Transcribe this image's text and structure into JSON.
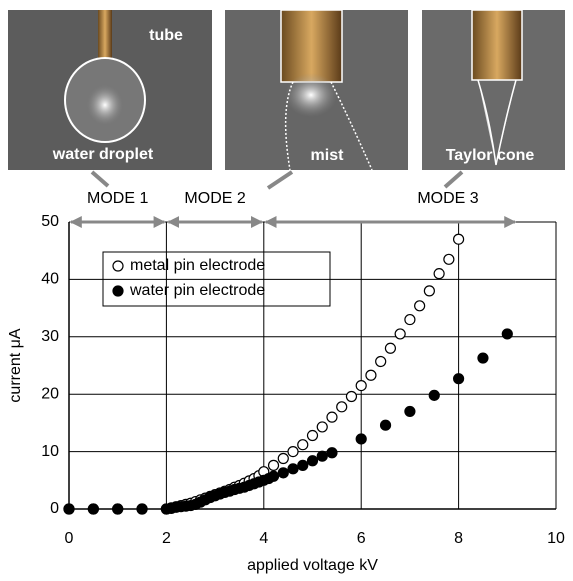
{
  "photos": [
    {
      "captions": [
        "tube",
        "water droplet"
      ]
    },
    {
      "captions": [
        "mist"
      ]
    },
    {
      "captions": [
        "Taylor cone"
      ]
    }
  ],
  "chart_data": {
    "type": "scatter",
    "x_label": "applied voltage  kV",
    "y_label": "current  μA",
    "xlim": [
      0,
      10
    ],
    "ylim": [
      0,
      50
    ],
    "xticks": [
      0,
      2,
      4,
      6,
      8,
      10
    ],
    "yticks": [
      0,
      10,
      20,
      30,
      40,
      50
    ],
    "grid": true,
    "legend": "upper left",
    "modes": [
      {
        "label": "MODE 1",
        "start": 0,
        "end": 2
      },
      {
        "label": "MODE 2",
        "start": 2,
        "end": 4
      },
      {
        "label": "MODE 3",
        "start": 4,
        "end": 9.2
      }
    ],
    "series": [
      {
        "name": "metal pin electrode",
        "color": "#000000",
        "marker": "open",
        "x": [
          0,
          0.5,
          1,
          1.5,
          2,
          2.1,
          2.2,
          2.3,
          2.4,
          2.5,
          2.6,
          2.7,
          2.8,
          2.9,
          3.0,
          3.1,
          3.2,
          3.3,
          3.4,
          3.5,
          3.6,
          3.7,
          3.8,
          3.9,
          4.0,
          4.2,
          4.4,
          4.6,
          4.8,
          5.0,
          5.2,
          5.4,
          5.6,
          5.8,
          6.0,
          6.2,
          6.4,
          6.6,
          6.8,
          7.0,
          7.2,
          7.4,
          7.6,
          7.8,
          8.0
        ],
        "values": [
          0,
          0,
          0,
          0,
          0,
          0.2,
          0.4,
          0.6,
          0.8,
          1.0,
          1.3,
          1.6,
          1.9,
          2.2,
          2.5,
          2.8,
          3.1,
          3.4,
          3.8,
          4.1,
          4.5,
          4.9,
          5.3,
          5.8,
          6.5,
          7.6,
          8.8,
          10,
          11.2,
          12.8,
          14.3,
          16,
          17.8,
          19.6,
          21.5,
          23.3,
          25.7,
          28,
          30.5,
          33,
          35.4,
          38,
          41,
          43.5,
          47
        ]
      },
      {
        "name": "water pin electrode",
        "color": "#000000",
        "marker": "filled",
        "x": [
          0,
          0.5,
          1,
          1.5,
          2,
          2.1,
          2.2,
          2.3,
          2.4,
          2.5,
          2.6,
          2.7,
          2.8,
          2.9,
          3.0,
          3.1,
          3.2,
          3.3,
          3.4,
          3.5,
          3.6,
          3.7,
          3.8,
          3.9,
          4.0,
          4.1,
          4.2,
          4.4,
          4.6,
          4.8,
          5.0,
          5.2,
          5.4,
          6.0,
          6.5,
          7.0,
          7.5,
          8.0,
          8.5,
          9.0
        ],
        "values": [
          0,
          0,
          0,
          0,
          0,
          0.1,
          0.3,
          0.4,
          0.5,
          0.6,
          0.8,
          1.2,
          1.6,
          2.0,
          2.3,
          2.6,
          2.9,
          3.1,
          3.4,
          3.6,
          3.8,
          4.1,
          4.4,
          4.7,
          5.0,
          5.3,
          5.7,
          6.3,
          7.0,
          7.6,
          8.4,
          9.2,
          9.8,
          12.2,
          14.6,
          17,
          19.8,
          22.7,
          26.3,
          30.5
        ]
      }
    ]
  }
}
